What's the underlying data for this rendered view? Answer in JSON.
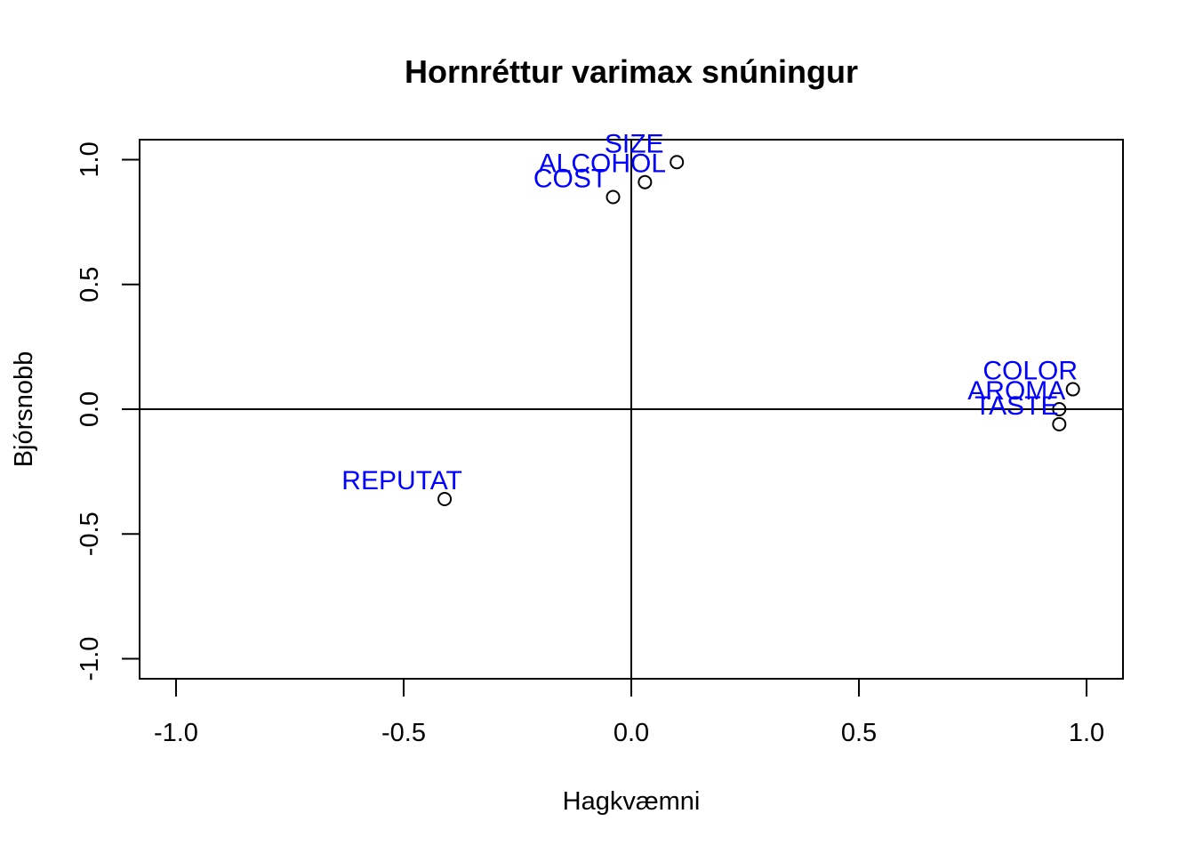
{
  "chart_data": {
    "type": "scatter",
    "title": "Hornréttur varimax snúningur",
    "xlabel": "Hagkvæmni",
    "ylabel": "Bjórsnobb",
    "xlim": [
      -1.08,
      1.08
    ],
    "ylim": [
      -1.08,
      1.08
    ],
    "x_ticks": [
      -1.0,
      -0.5,
      0.0,
      0.5,
      1.0
    ],
    "x_tick_labels": [
      "-1.0",
      "-0.5",
      "0.0",
      "0.5",
      "1.0"
    ],
    "y_ticks": [
      -1.0,
      -0.5,
      0.0,
      0.5,
      1.0
    ],
    "y_tick_labels": [
      "-1.0",
      "-0.5",
      "0.0",
      "0.5",
      "1.0"
    ],
    "reference_lines": {
      "h": 0,
      "v": 0
    },
    "grid": false,
    "label_color": "#0000ff",
    "points": [
      {
        "label": "COST",
        "x": -0.04,
        "y": 0.85
      },
      {
        "label": "SIZE",
        "x": 0.1,
        "y": 0.99
      },
      {
        "label": "ALCOHOL",
        "x": 0.03,
        "y": 0.91
      },
      {
        "label": "REPUTAT",
        "x": -0.41,
        "y": -0.36
      },
      {
        "label": "COLOR",
        "x": 0.97,
        "y": 0.08
      },
      {
        "label": "AROMA",
        "x": 0.94,
        "y": 0.0
      },
      {
        "label": "TASTE",
        "x": 0.94,
        "y": -0.06
      }
    ]
  }
}
